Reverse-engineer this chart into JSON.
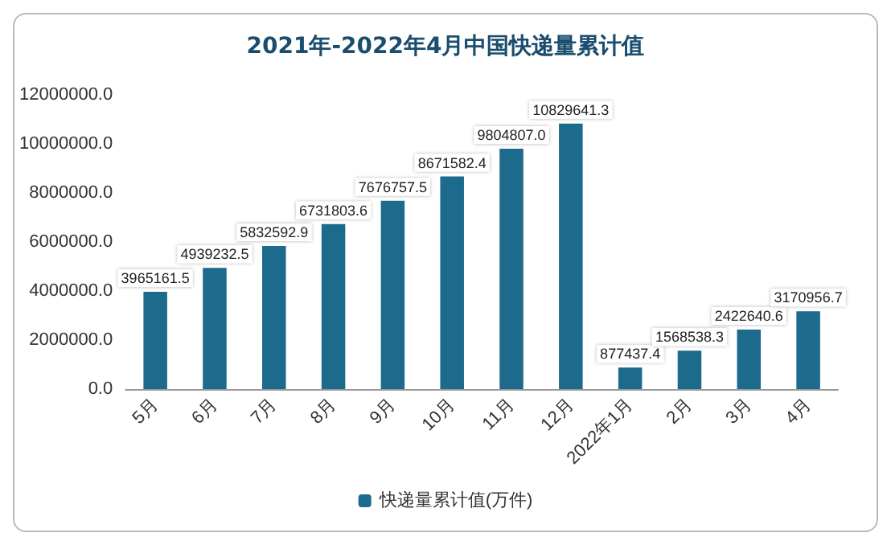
{
  "chart_data": {
    "type": "bar",
    "title": "2021年-2022年4月中国快递量累计值",
    "categories": [
      "5月",
      "6月",
      "7月",
      "8月",
      "9月",
      "10月",
      "11月",
      "12月",
      "2022年1月",
      "2月",
      "3月",
      "4月"
    ],
    "series": [
      {
        "name": "快递量累计值(万件)",
        "color": "#1c6b8c",
        "values": [
          3965161.5,
          4939232.5,
          5832592.9,
          6731803.6,
          7676757.5,
          8671582.4,
          9804807.0,
          10829641.3,
          877437.4,
          1568538.3,
          2422640.6,
          3170956.7
        ],
        "value_labels": [
          "3965161.5",
          "4939232.5",
          "5832592.9",
          "6731803.6",
          "7676757.5",
          "8671582.4",
          "9804807.0",
          "10829641.3",
          "877437.4",
          "1568538.3",
          "2422640.6",
          "3170956.7"
        ]
      }
    ],
    "ylim": [
      0,
      12000000
    ],
    "yticks": [
      {
        "value": 0,
        "label": "0.0"
      },
      {
        "value": 2000000,
        "label": "2000000.0"
      },
      {
        "value": 4000000,
        "label": "4000000.0"
      },
      {
        "value": 6000000,
        "label": "6000000.0"
      },
      {
        "value": 8000000,
        "label": "8000000.0"
      },
      {
        "value": 10000000,
        "label": "10000000.0"
      },
      {
        "value": 12000000,
        "label": "12000000.0"
      }
    ],
    "legend": "bottom",
    "grid": false
  }
}
